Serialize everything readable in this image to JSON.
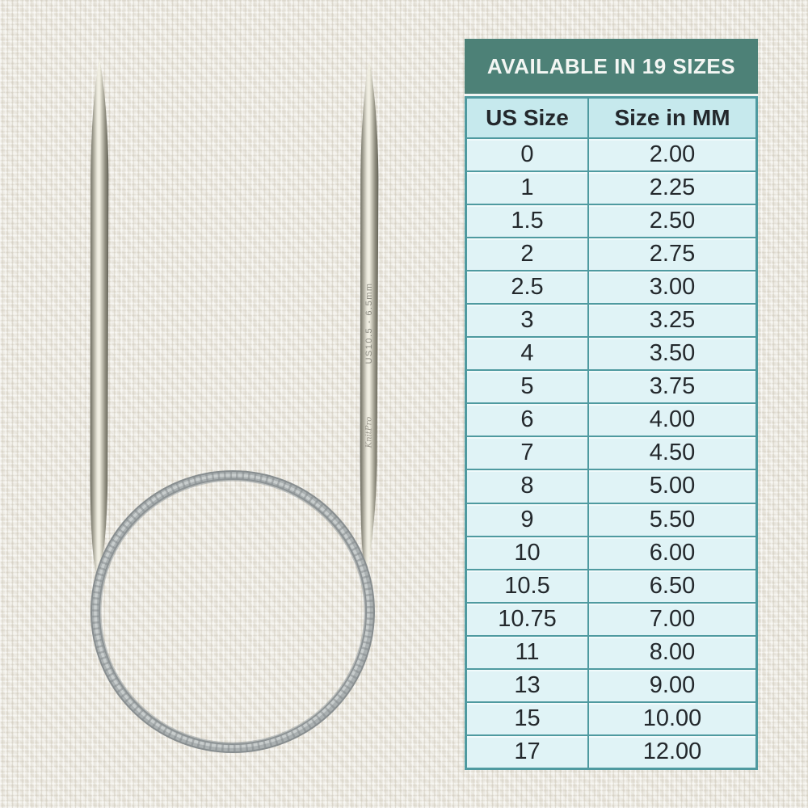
{
  "header": {
    "title": "AVAILABLE IN 19 SIZES"
  },
  "chart_data": {
    "type": "table",
    "title": "AVAILABLE IN 19 SIZES",
    "columns": [
      "US Size",
      "Size in MM"
    ],
    "rows": [
      [
        "0",
        "2.00"
      ],
      [
        "1",
        "2.25"
      ],
      [
        "1.5",
        "2.50"
      ],
      [
        "2",
        "2.75"
      ],
      [
        "2.5",
        "3.00"
      ],
      [
        "3",
        "3.25"
      ],
      [
        "4",
        "3.50"
      ],
      [
        "5",
        "3.75"
      ],
      [
        "6",
        "4.00"
      ],
      [
        "7",
        "4.50"
      ],
      [
        "8",
        "5.00"
      ],
      [
        "9",
        "5.50"
      ],
      [
        "10",
        "6.00"
      ],
      [
        "10.5",
        "6.50"
      ],
      [
        "10.75",
        "7.00"
      ],
      [
        "11",
        "8.00"
      ],
      [
        "13",
        "9.00"
      ],
      [
        "15",
        "10.00"
      ],
      [
        "17",
        "12.00"
      ]
    ]
  },
  "needle": {
    "size_label": "US10.5 - 6.5mm",
    "brand_label": "KnitPro"
  },
  "colors": {
    "header_bg": "#4d8177",
    "header_text": "#f3f6f3",
    "column_header_bg": "#c6e9ed",
    "row_bg": "#e0f3f6",
    "table_border": "#4f9aa0",
    "cell_text": "#23282c",
    "background_fabric": "#ece9e1",
    "cable_gray": "#9aa0a2",
    "needle_metal_highlight": "#f4f2e6"
  }
}
